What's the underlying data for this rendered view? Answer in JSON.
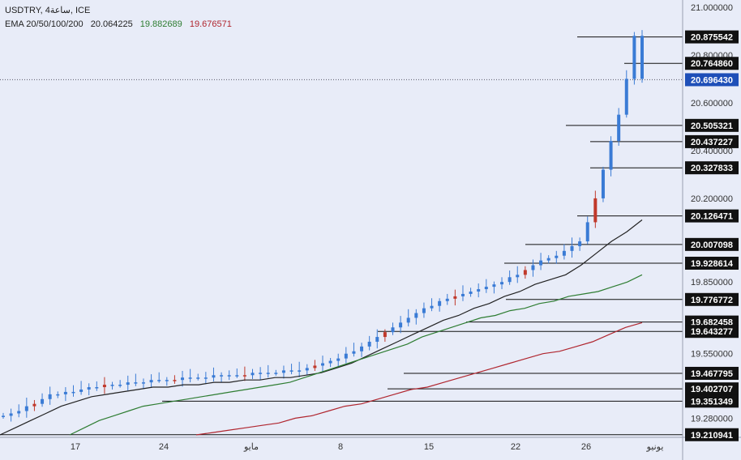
{
  "header": {
    "symbol_line": "USDTRY, 4ساعة, ICE",
    "ema_label": "EMA 20/50/100/200",
    "ema_values": [
      {
        "value": "20.064225",
        "color": "#222222"
      },
      {
        "value": "19.882689",
        "color": "#2e7d32"
      },
      {
        "value": "19.676571",
        "color": "#b0262f"
      }
    ]
  },
  "colors": {
    "background": "#e8ecf8",
    "candle": "#3a7bd5",
    "ema20": "#222222",
    "ema50": "#2e7d32",
    "ema100": "#b0262f",
    "level_line": "#111111",
    "label_bg": "#111111",
    "current_bg": "#1e4fb8"
  },
  "chart_data": {
    "type": "line",
    "title": "USDTRY, 4ساعة, ICE",
    "x_ticks": [
      "17",
      "24",
      "مايو",
      "8",
      "15",
      "22",
      "26",
      "يونيو"
    ],
    "y_ticks": [
      "21.000000",
      "20.800000",
      "20.600000",
      "20.400000",
      "20.200000",
      "19.850000",
      "19.550000",
      "19.280000"
    ],
    "ylim": [
      19.2,
      21.03
    ],
    "levels": [
      20.875542,
      20.76486,
      20.505321,
      20.437227,
      20.327833,
      20.126471,
      20.007098,
      19.928614,
      19.776772,
      19.682458,
      19.643277,
      19.467795,
      19.402707,
      19.351349,
      19.210941
    ],
    "level_labels": [
      "20.875542",
      "20.764860",
      "20.505321",
      "20.437227",
      "20.327833",
      "20.126471",
      "20.007098",
      "19.928614",
      "19.776772",
      "19.682458",
      "19.643277",
      "19.467795",
      "19.402707",
      "19.351349",
      "19.210941"
    ],
    "current_price": 20.69643,
    "current_price_label": "20.696430",
    "close_series": {
      "name": "USDTRY",
      "values": [
        19.29,
        19.3,
        19.31,
        19.33,
        19.34,
        19.36,
        19.38,
        19.38,
        19.39,
        19.39,
        19.4,
        19.41,
        19.41,
        19.42,
        19.42,
        19.42,
        19.43,
        19.43,
        19.43,
        19.44,
        19.44,
        19.44,
        19.44,
        19.45,
        19.45,
        19.45,
        19.45,
        19.46,
        19.46,
        19.46,
        19.46,
        19.46,
        19.47,
        19.47,
        19.47,
        19.47,
        19.48,
        19.48,
        19.48,
        19.49,
        19.5,
        19.51,
        19.52,
        19.53,
        19.55,
        19.56,
        19.58,
        19.6,
        19.62,
        19.64,
        19.66,
        19.68,
        19.7,
        19.72,
        19.74,
        19.75,
        19.77,
        19.78,
        19.79,
        19.8,
        19.81,
        19.82,
        19.83,
        19.84,
        19.85,
        19.87,
        19.88,
        19.9,
        19.92,
        19.94,
        19.95,
        19.96,
        19.98,
        20.0,
        20.02,
        20.1,
        20.2,
        20.32,
        20.44,
        20.55,
        20.7,
        20.88,
        20.7
      ]
    },
    "ema_series": [
      {
        "name": "EMA 20",
        "values": [
          19.21,
          19.24,
          19.27,
          19.3,
          19.33,
          19.35,
          19.37,
          19.38,
          19.39,
          19.4,
          19.41,
          19.41,
          19.42,
          19.42,
          19.43,
          19.43,
          19.44,
          19.44,
          19.45,
          19.45,
          19.46,
          19.47,
          19.49,
          19.51,
          19.54,
          19.57,
          19.6,
          19.63,
          19.66,
          19.69,
          19.71,
          19.74,
          19.76,
          19.79,
          19.81,
          19.84,
          19.86,
          19.88,
          19.92,
          19.97,
          20.02,
          20.06,
          20.11
        ]
      },
      {
        "name": "EMA 50",
        "values": [
          19.21,
          19.24,
          19.27,
          19.29,
          19.31,
          19.33,
          19.34,
          19.35,
          19.36,
          19.37,
          19.38,
          19.39,
          19.4,
          19.41,
          19.42,
          19.43,
          19.45,
          19.47,
          19.49,
          19.51,
          19.53,
          19.55,
          19.57,
          19.59,
          19.62,
          19.64,
          19.66,
          19.68,
          19.7,
          19.71,
          19.73,
          19.74,
          19.76,
          19.77,
          19.79,
          19.8,
          19.81,
          19.83,
          19.85,
          19.88
        ]
      },
      {
        "name": "EMA 100",
        "values": [
          19.21,
          19.22,
          19.23,
          19.24,
          19.25,
          19.26,
          19.28,
          19.29,
          19.31,
          19.33,
          19.34,
          19.36,
          19.38,
          19.4,
          19.41,
          19.43,
          19.45,
          19.47,
          19.49,
          19.51,
          19.53,
          19.55,
          19.56,
          19.58,
          19.6,
          19.63,
          19.66,
          19.68
        ]
      }
    ]
  }
}
